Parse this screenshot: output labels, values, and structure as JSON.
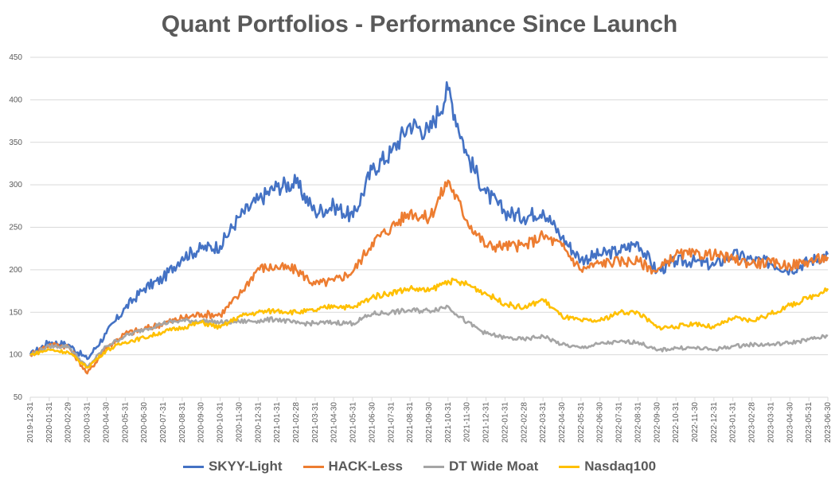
{
  "chart_data": {
    "type": "line",
    "title": "Quant Portfolios - Performance Since Launch",
    "xlabel": "",
    "ylabel": "",
    "ylim": [
      50,
      450
    ],
    "yticks": [
      50,
      100,
      150,
      200,
      250,
      300,
      350,
      400,
      450
    ],
    "categories": [
      "2019-12-31",
      "2020-01-31",
      "2020-02-29",
      "2020-03-31",
      "2020-04-30",
      "2020-05-31",
      "2020-06-30",
      "2020-07-31",
      "2020-08-31",
      "2020-09-30",
      "2020-10-31",
      "2020-11-30",
      "2020-12-31",
      "2021-01-31",
      "2021-02-28",
      "2021-03-31",
      "2021-04-30",
      "2021-05-31",
      "2021-06-30",
      "2021-07-31",
      "2021-08-31",
      "2021-09-30",
      "2021-10-31",
      "2021-11-30",
      "2021-12-31",
      "2022-01-31",
      "2022-02-28",
      "2022-03-31",
      "2022-04-30",
      "2022-05-31",
      "2022-06-30",
      "2022-07-31",
      "2022-08-31",
      "2022-09-30",
      "2022-10-31",
      "2022-11-30",
      "2022-12-31",
      "2023-01-31",
      "2023-02-28",
      "2023-03-31",
      "2023-04-30",
      "2023-05-31",
      "2023-06-30"
    ],
    "series": [
      {
        "name": "SKYY-Light",
        "color": "#4472C4",
        "values": [
          100,
          115,
          112,
          95,
          125,
          155,
          178,
          190,
          215,
          225,
          228,
          262,
          282,
          298,
          302,
          268,
          275,
          262,
          318,
          338,
          372,
          362,
          412,
          335,
          290,
          268,
          262,
          270,
          238,
          212,
          218,
          222,
          232,
          198,
          210,
          210,
          205,
          218,
          212,
          208,
          200,
          210,
          218
        ]
      },
      {
        "name": "HACK-Less",
        "color": "#ED7D31",
        "values": [
          100,
          112,
          110,
          78,
          108,
          125,
          130,
          137,
          143,
          148,
          147,
          170,
          202,
          203,
          200,
          183,
          187,
          198,
          232,
          250,
          268,
          260,
          305,
          258,
          228,
          228,
          228,
          240,
          228,
          200,
          208,
          210,
          210,
          198,
          218,
          218,
          218,
          212,
          208,
          208,
          205,
          210,
          215
        ]
      },
      {
        "name": "DT Wide Moat",
        "color": "#A5A5A5",
        "values": [
          100,
          110,
          110,
          85,
          110,
          122,
          130,
          137,
          140,
          140,
          138,
          139,
          140,
          142,
          137,
          137,
          138,
          137,
          148,
          150,
          152,
          152,
          157,
          138,
          125,
          120,
          118,
          122,
          112,
          108,
          113,
          115,
          115,
          105,
          108,
          108,
          106,
          110,
          112,
          112,
          114,
          118,
          122
        ]
      },
      {
        "name": "Nasdaq100",
        "color": "#FFC000",
        "values": [
          100,
          106,
          103,
          85,
          105,
          115,
          120,
          127,
          132,
          138,
          132,
          145,
          150,
          152,
          150,
          152,
          158,
          155,
          168,
          173,
          178,
          175,
          187,
          183,
          172,
          160,
          155,
          165,
          145,
          140,
          140,
          150,
          150,
          132,
          133,
          137,
          132,
          143,
          140,
          148,
          158,
          167,
          178
        ]
      }
    ]
  }
}
